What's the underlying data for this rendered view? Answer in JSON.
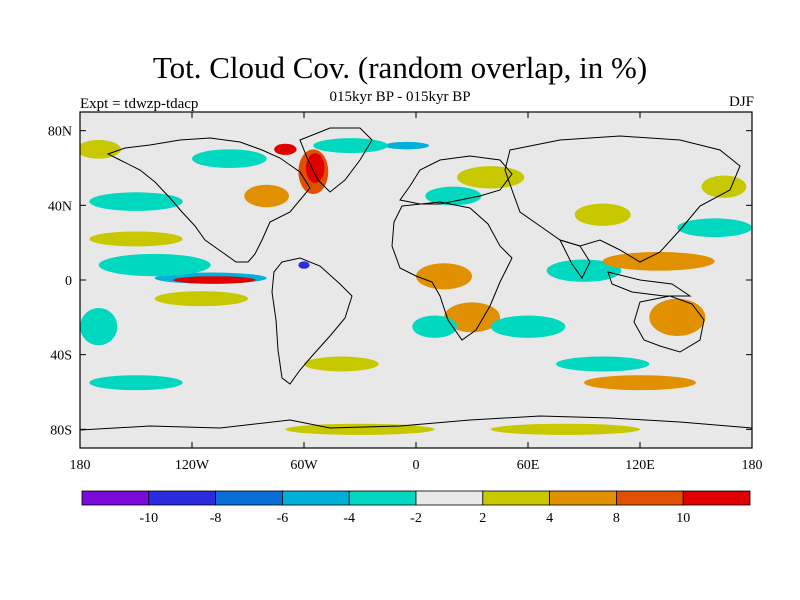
{
  "title": "Tot. Cloud Cov. (random overlap, in %)",
  "subtitle": "015kyr BP - 015kyr BP",
  "experiment": "Expt = tdwzp-tdacp",
  "season": "DJF",
  "map": {
    "projection": "cylindrical equidistant",
    "lon_range": [
      -180,
      180
    ],
    "lat_range": [
      -90,
      90
    ],
    "land_fill": "#e8e8e8",
    "coastline_color": "#000000"
  },
  "axes": {
    "x_ticks": [
      {
        "value": -180,
        "label": "180"
      },
      {
        "value": -120,
        "label": "120W"
      },
      {
        "value": -60,
        "label": "60W"
      },
      {
        "value": 0,
        "label": "0"
      },
      {
        "value": 60,
        "label": "60E"
      },
      {
        "value": 120,
        "label": "120E"
      },
      {
        "value": 180,
        "label": "180"
      }
    ],
    "y_ticks": [
      {
        "value": 80,
        "label": "80N"
      },
      {
        "value": 40,
        "label": "40N"
      },
      {
        "value": 0,
        "label": "0"
      },
      {
        "value": -40,
        "label": "40S"
      },
      {
        "value": -80,
        "label": "80S"
      }
    ]
  },
  "colorbar": {
    "colors": [
      "#7a0ad8",
      "#2b2be0",
      "#0a6ed8",
      "#00b0d8",
      "#00d8c0",
      "#e8e8e8",
      "#c8c800",
      "#e09000",
      "#e05000",
      "#e00000"
    ],
    "labels": [
      "-10",
      "-8",
      "-6",
      "-4",
      "-2",
      "2",
      "4",
      "8",
      "10"
    ]
  },
  "anomalies": [
    {
      "lon": -110,
      "lat": 1,
      "rx": 30,
      "ry": 3,
      "level": -6
    },
    {
      "lon": -108,
      "lat": 0,
      "rx": 22,
      "ry": 2,
      "level": 10
    },
    {
      "lon": -140,
      "lat": 8,
      "rx": 30,
      "ry": 6,
      "level": -3
    },
    {
      "lon": -150,
      "lat": 22,
      "rx": 25,
      "ry": 4,
      "level": 3
    },
    {
      "lon": -115,
      "lat": -10,
      "rx": 25,
      "ry": 4,
      "level": 3
    },
    {
      "lon": -55,
      "lat": 58,
      "rx": 8,
      "ry": 12,
      "level": 8
    },
    {
      "lon": -54,
      "lat": 60,
      "rx": 5,
      "ry": 8,
      "level": 10
    },
    {
      "lon": -70,
      "lat": 70,
      "rx": 6,
      "ry": 3,
      "level": 10
    },
    {
      "lon": -5,
      "lat": 72,
      "rx": 12,
      "ry": 2,
      "level": -6
    },
    {
      "lon": -35,
      "lat": 72,
      "rx": 20,
      "ry": 4,
      "level": -3
    },
    {
      "lon": -80,
      "lat": 45,
      "rx": 12,
      "ry": 6,
      "level": 4
    },
    {
      "lon": -150,
      "lat": 42,
      "rx": 25,
      "ry": 5,
      "level": -3
    },
    {
      "lon": -170,
      "lat": 70,
      "rx": 12,
      "ry": 5,
      "level": 3
    },
    {
      "lon": -100,
      "lat": 65,
      "rx": 20,
      "ry": 5,
      "level": -3
    },
    {
      "lon": 15,
      "lat": 2,
      "rx": 15,
      "ry": 7,
      "level": 4
    },
    {
      "lon": 30,
      "lat": -20,
      "rx": 15,
      "ry": 8,
      "level": 4
    },
    {
      "lon": 10,
      "lat": -25,
      "rx": 12,
      "ry": 6,
      "level": -3
    },
    {
      "lon": 60,
      "lat": -25,
      "rx": 20,
      "ry": 6,
      "level": -3
    },
    {
      "lon": 90,
      "lat": 5,
      "rx": 20,
      "ry": 6,
      "level": -3
    },
    {
      "lon": 130,
      "lat": 10,
      "rx": 30,
      "ry": 5,
      "level": 4
    },
    {
      "lon": 140,
      "lat": -20,
      "rx": 15,
      "ry": 10,
      "level": 4
    },
    {
      "lon": 100,
      "lat": 35,
      "rx": 15,
      "ry": 6,
      "level": 3
    },
    {
      "lon": 160,
      "lat": 28,
      "rx": 20,
      "ry": 5,
      "level": -3
    },
    {
      "lon": 120,
      "lat": -55,
      "rx": 30,
      "ry": 4,
      "level": 4
    },
    {
      "lon": 100,
      "lat": -45,
      "rx": 25,
      "ry": 4,
      "level": -3
    },
    {
      "lon": -40,
      "lat": -45,
      "rx": 20,
      "ry": 4,
      "level": 3
    },
    {
      "lon": -150,
      "lat": -55,
      "rx": 25,
      "ry": 4,
      "level": -3
    },
    {
      "lon": -30,
      "lat": -80,
      "rx": 40,
      "ry": 3,
      "level": 3
    },
    {
      "lon": 80,
      "lat": -80,
      "rx": 40,
      "ry": 3,
      "level": 3
    },
    {
      "lon": 165,
      "lat": 50,
      "rx": 12,
      "ry": 6,
      "level": 3
    },
    {
      "lon": -170,
      "lat": -25,
      "rx": 10,
      "ry": 10,
      "level": -3
    },
    {
      "lon": 20,
      "lat": 45,
      "rx": 15,
      "ry": 5,
      "level": -3
    },
    {
      "lon": 40,
      "lat": 55,
      "rx": 18,
      "ry": 6,
      "level": 3
    },
    {
      "lon": -60,
      "lat": 8,
      "rx": 3,
      "ry": 2,
      "level": -10
    }
  ]
}
